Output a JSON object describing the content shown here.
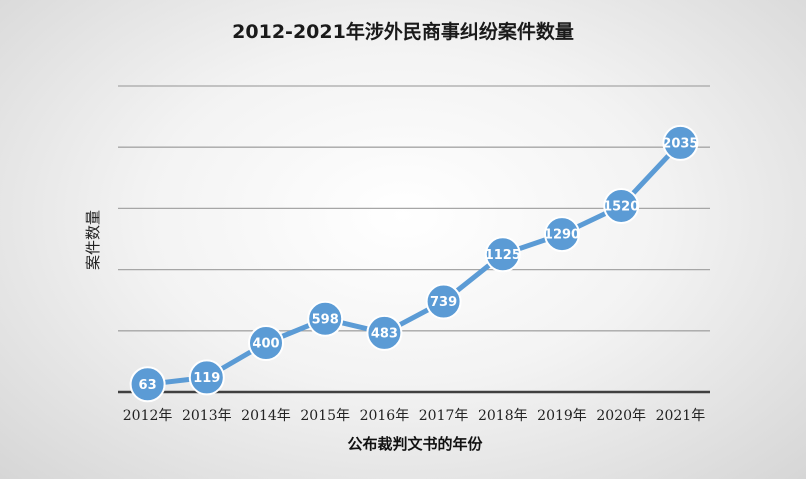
{
  "chart_data": {
    "type": "line",
    "title": "2012-2021年涉外民商事纠纷案件数量",
    "xlabel": "公布裁判文书的年份",
    "ylabel": "案件数量",
    "categories": [
      "2012年",
      "2013年",
      "2014年",
      "2015年",
      "2016年",
      "2017年",
      "2018年",
      "2019年",
      "2020年",
      "2021年"
    ],
    "series": [
      {
        "values": [
          63,
          119,
          400,
          598,
          483,
          739,
          1125,
          1290,
          1520,
          2035
        ]
      }
    ],
    "ylim": [
      0,
      2500
    ],
    "grid": true,
    "legend": "none",
    "colors": {
      "line": "#5b9bd5",
      "marker": "#5b9bd5",
      "marker_border": "#ffffff",
      "label": "#ffffff",
      "grid": "#a6a6a6",
      "axis": "#404040"
    }
  }
}
